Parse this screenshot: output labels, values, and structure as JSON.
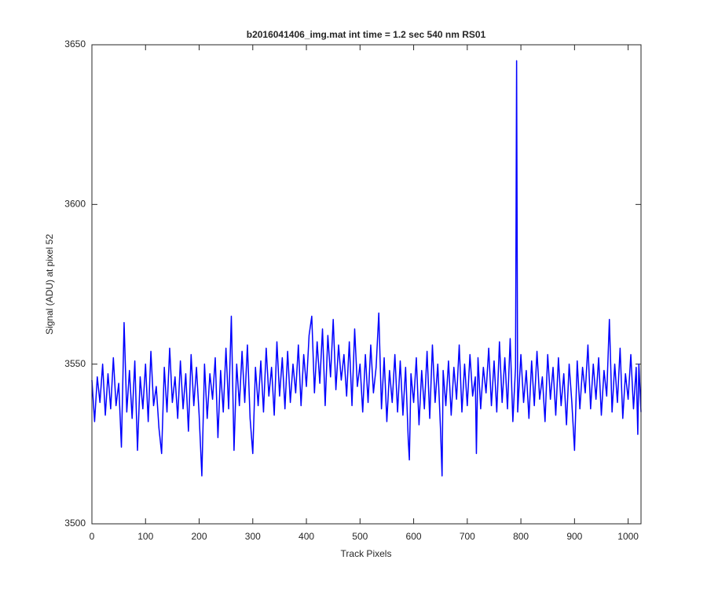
{
  "chart_data": {
    "type": "line",
    "title": "b2016041406_img.mat int time = 1.2 sec  540 nm RS01",
    "x_label": "Track Pixels",
    "y_label": "Signal (ADU) at pixel 52",
    "color": "#0000ff",
    "x": [
      0,
      5,
      10,
      15,
      20,
      25,
      30,
      35,
      40,
      45,
      50,
      55,
      60,
      65,
      70,
      75,
      80,
      85,
      90,
      95,
      100,
      105,
      110,
      115,
      120,
      125,
      130,
      135,
      140,
      145,
      150,
      155,
      160,
      165,
      170,
      175,
      180,
      185,
      190,
      195,
      200,
      205,
      210,
      215,
      220,
      225,
      230,
      235,
      240,
      245,
      250,
      255,
      260,
      265,
      270,
      275,
      280,
      285,
      290,
      295,
      300,
      305,
      310,
      315,
      320,
      325,
      330,
      335,
      340,
      345,
      350,
      355,
      360,
      365,
      370,
      375,
      380,
      385,
      390,
      395,
      400,
      405,
      410,
      415,
      420,
      425,
      430,
      435,
      440,
      445,
      450,
      455,
      460,
      465,
      470,
      475,
      480,
      485,
      490,
      495,
      500,
      505,
      510,
      515,
      520,
      525,
      530,
      535,
      540,
      545,
      550,
      555,
      560,
      565,
      570,
      575,
      580,
      585,
      590,
      592,
      595,
      600,
      605,
      610,
      615,
      620,
      625,
      630,
      635,
      640,
      645,
      650,
      653,
      655,
      660,
      665,
      670,
      675,
      680,
      685,
      690,
      695,
      700,
      705,
      710,
      715,
      717,
      720,
      725,
      730,
      735,
      740,
      745,
      750,
      755,
      760,
      765,
      770,
      775,
      780,
      785,
      790,
      792,
      794,
      800,
      805,
      810,
      815,
      820,
      825,
      830,
      835,
      840,
      845,
      850,
      855,
      860,
      865,
      870,
      875,
      880,
      885,
      890,
      895,
      900,
      905,
      910,
      915,
      920,
      925,
      930,
      935,
      940,
      945,
      950,
      955,
      960,
      965,
      970,
      975,
      980,
      985,
      990,
      995,
      1000,
      1005,
      1010,
      1015,
      1018,
      1020,
      1024
    ],
    "values": [
      3545,
      3532,
      3546,
      3538,
      3550,
      3534,
      3547,
      3536,
      3552,
      3537,
      3544,
      3524,
      3563,
      3535,
      3548,
      3533,
      3551,
      3523,
      3546,
      3536,
      3550,
      3532,
      3554,
      3537,
      3543,
      3530,
      3522,
      3549,
      3535,
      3555,
      3538,
      3546,
      3533,
      3551,
      3536,
      3547,
      3529,
      3553,
      3537,
      3549,
      3534,
      3515,
      3550,
      3533,
      3547,
      3539,
      3552,
      3527,
      3548,
      3535,
      3555,
      3536,
      3565,
      3523,
      3550,
      3537,
      3554,
      3538,
      3556,
      3533,
      3522,
      3549,
      3537,
      3551,
      3535,
      3555,
      3540,
      3549,
      3534,
      3557,
      3540,
      3552,
      3536,
      3554,
      3538,
      3550,
      3541,
      3556,
      3537,
      3553,
      3543,
      3559,
      3565,
      3541,
      3557,
      3544,
      3561,
      3537,
      3559,
      3546,
      3564,
      3542,
      3556,
      3545,
      3553,
      3540,
      3557,
      3537,
      3561,
      3543,
      3550,
      3535,
      3553,
      3538,
      3556,
      3541,
      3549,
      3566,
      3536,
      3552,
      3532,
      3548,
      3538,
      3553,
      3535,
      3551,
      3534,
      3549,
      3526,
      3520,
      3547,
      3538,
      3552,
      3531,
      3548,
      3536,
      3554,
      3533,
      3556,
      3538,
      3550,
      3530,
      3515,
      3548,
      3537,
      3551,
      3534,
      3549,
      3539,
      3556,
      3535,
      3550,
      3537,
      3553,
      3540,
      3546,
      3522,
      3552,
      3536,
      3549,
      3541,
      3555,
      3537,
      3551,
      3535,
      3557,
      3538,
      3552,
      3536,
      3558,
      3532,
      3549,
      3645,
      3535,
      3553,
      3538,
      3548,
      3533,
      3551,
      3537,
      3554,
      3539,
      3546,
      3532,
      3553,
      3539,
      3549,
      3534,
      3552,
      3537,
      3547,
      3531,
      3550,
      3538,
      3523,
      3551,
      3536,
      3549,
      3541,
      3556,
      3536,
      3550,
      3539,
      3552,
      3534,
      3548,
      3540,
      3564,
      3535,
      3550,
      3538,
      3555,
      3533,
      3547,
      3539,
      3553,
      3536,
      3549,
      3528,
      3550,
      3535
    ],
    "xlim": [
      0,
      1024
    ],
    "ylim": [
      3500,
      3650
    ],
    "xticks": [
      0,
      100,
      200,
      300,
      400,
      500,
      600,
      700,
      800,
      900,
      1000
    ],
    "yticks": [
      3500,
      3550,
      3600,
      3650
    ]
  }
}
